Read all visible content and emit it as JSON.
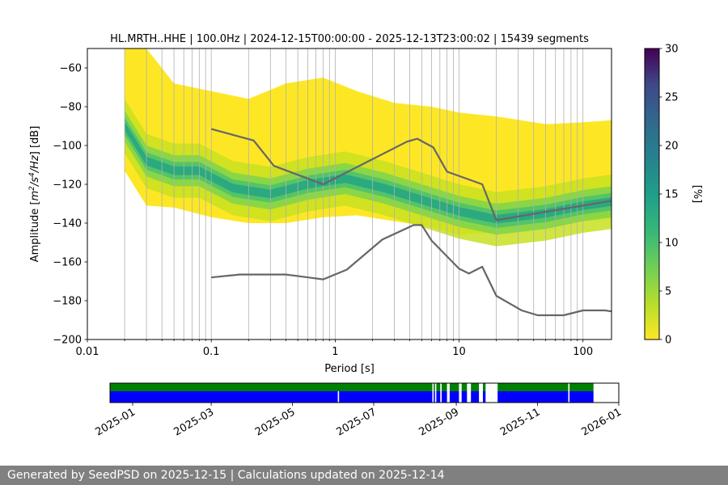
{
  "chart_data": [
    {
      "type": "heatmap",
      "title": "HL.MRTH..HHE | 100.0Hz | 2024-12-15T00:00:00 - 2025-12-13T23:00:02 | 15439 segments",
      "xlabel": "Period [s]",
      "ylabel_parts": [
        "Amplitude [",
        "m",
        "2",
        "/s",
        "4",
        "/Hz",
        "] [dB]"
      ],
      "xscale": "log",
      "xlim": [
        0.01,
        170
      ],
      "ylim": [
        -200,
        -50
      ],
      "xticks": [
        0.01,
        0.1,
        1,
        10,
        100
      ],
      "xtick_labels": [
        "0.01",
        "0.1",
        "1",
        "10",
        "100"
      ],
      "yticks": [
        -200,
        -180,
        -160,
        -140,
        -120,
        -100,
        -80,
        -60
      ],
      "ytick_labels": [
        "−200",
        "−180",
        "−160",
        "−140",
        "−120",
        "−100",
        "−80",
        "−60"
      ],
      "grid_x": true,
      "colorbar": {
        "label": "[%]",
        "range": [
          0,
          30
        ],
        "ticks": [
          0,
          5,
          10,
          15,
          20,
          25,
          30
        ],
        "tick_labels": [
          "0",
          "5",
          "10",
          "15",
          "20",
          "25",
          "30"
        ],
        "colormap": "viridis"
      },
      "density_outline": [
        {
          "period": 0.02,
          "upper": -50,
          "lower": -113
        },
        {
          "period": 0.03,
          "upper": -50,
          "lower": -131
        },
        {
          "period": 0.05,
          "upper": -68,
          "lower": -132
        },
        {
          "period": 0.1,
          "upper": -72,
          "lower": -137
        },
        {
          "period": 0.2,
          "upper": -76,
          "lower": -140
        },
        {
          "period": 0.4,
          "upper": -68,
          "lower": -140
        },
        {
          "period": 0.8,
          "upper": -65,
          "lower": -137
        },
        {
          "period": 1.5,
          "upper": -72,
          "lower": -136
        },
        {
          "period": 3,
          "upper": -78,
          "lower": -139
        },
        {
          "period": 6,
          "upper": -80,
          "lower": -142
        },
        {
          "period": 10,
          "upper": -83,
          "lower": -146
        },
        {
          "period": 20,
          "upper": -85,
          "lower": -145
        },
        {
          "period": 50,
          "upper": -89,
          "lower": -142
        },
        {
          "period": 100,
          "upper": -88,
          "lower": -139
        },
        {
          "period": 170,
          "upper": -87,
          "lower": -138
        }
      ],
      "density_mode": [
        {
          "period": 0.02,
          "value": -90
        },
        {
          "period": 0.03,
          "value": -108
        },
        {
          "period": 0.05,
          "value": -113
        },
        {
          "period": 0.08,
          "value": -113
        },
        {
          "period": 0.15,
          "value": -122
        },
        {
          "period": 0.3,
          "value": -125
        },
        {
          "period": 0.6,
          "value": -120
        },
        {
          "period": 1.2,
          "value": -117
        },
        {
          "period": 2.5,
          "value": -122
        },
        {
          "period": 5,
          "value": -128
        },
        {
          "period": 10,
          "value": -134
        },
        {
          "period": 20,
          "value": -138
        },
        {
          "period": 50,
          "value": -135
        },
        {
          "period": 100,
          "value": -131
        },
        {
          "period": 170,
          "value": -129
        }
      ],
      "series": [
        {
          "x": [
            0.1,
            0.22,
            0.32,
            0.8,
            3.8,
            4.6,
            6.2,
            8,
            15.4,
            20,
            170
          ],
          "y": [
            -91.5,
            -97.4,
            -110.5,
            -120,
            -98,
            -96.5,
            -101,
            -113.5,
            -120,
            -138.5,
            -128.5
          ]
        },
        {
          "x": [
            0.1,
            0.17,
            0.4,
            0.8,
            1.24,
            2.4,
            4.3,
            5,
            6,
            10,
            12,
            15.4,
            20,
            32,
            43,
            70,
            100,
            150,
            170
          ],
          "y": [
            -168,
            -166.5,
            -166.5,
            -169,
            -164,
            -148.5,
            -141,
            -141,
            -149,
            -163.5,
            -166,
            -162.5,
            -177.5,
            -185,
            -187.5,
            -187.5,
            -185,
            -185,
            -185.5
          ]
        }
      ]
    },
    {
      "type": "timeline",
      "xlim": [
        "2024-12-15",
        "2026-01-01"
      ],
      "xtick_labels": [
        "2025-01",
        "2025-03",
        "2025-05",
        "2025-07",
        "2025-09",
        "2025-11",
        "2026-01"
      ],
      "xtick_dates": [
        "2025-01-01",
        "2025-03-01",
        "2025-05-01",
        "2025-07-01",
        "2025-09-01",
        "2025-11-01",
        "2026-01-01"
      ],
      "colors": {
        "green": "#008000",
        "blue": "#0000ff"
      },
      "green_segments": [
        [
          "2024-12-15",
          "2025-08-14"
        ],
        [
          "2025-08-15",
          "2025-08-16"
        ],
        [
          "2025-08-17",
          "2025-08-20"
        ],
        [
          "2025-08-21",
          "2025-08-25"
        ],
        [
          "2025-08-27",
          "2025-09-03"
        ],
        [
          "2025-09-05",
          "2025-09-09"
        ],
        [
          "2025-09-12",
          "2025-09-18"
        ],
        [
          "2025-09-21",
          "2025-09-23"
        ],
        [
          "2025-10-02",
          "2025-11-24"
        ],
        [
          "2025-11-25",
          "2025-12-13"
        ]
      ],
      "blue_segments": [
        [
          "2024-12-15",
          "2025-06-04"
        ],
        [
          "2025-06-05",
          "2025-08-14"
        ],
        [
          "2025-08-15",
          "2025-08-16"
        ],
        [
          "2025-08-17",
          "2025-08-20"
        ],
        [
          "2025-08-21",
          "2025-08-25"
        ],
        [
          "2025-08-27",
          "2025-09-03"
        ],
        [
          "2025-09-05",
          "2025-09-09"
        ],
        [
          "2025-09-12",
          "2025-09-18"
        ],
        [
          "2025-09-21",
          "2025-09-23"
        ],
        [
          "2025-10-02",
          "2025-11-24"
        ],
        [
          "2025-11-25",
          "2025-12-13"
        ]
      ]
    }
  ],
  "footer": {
    "text": "Generated by SeedPSD on 2025-12-15 | Calculations updated on 2025-12-14"
  }
}
